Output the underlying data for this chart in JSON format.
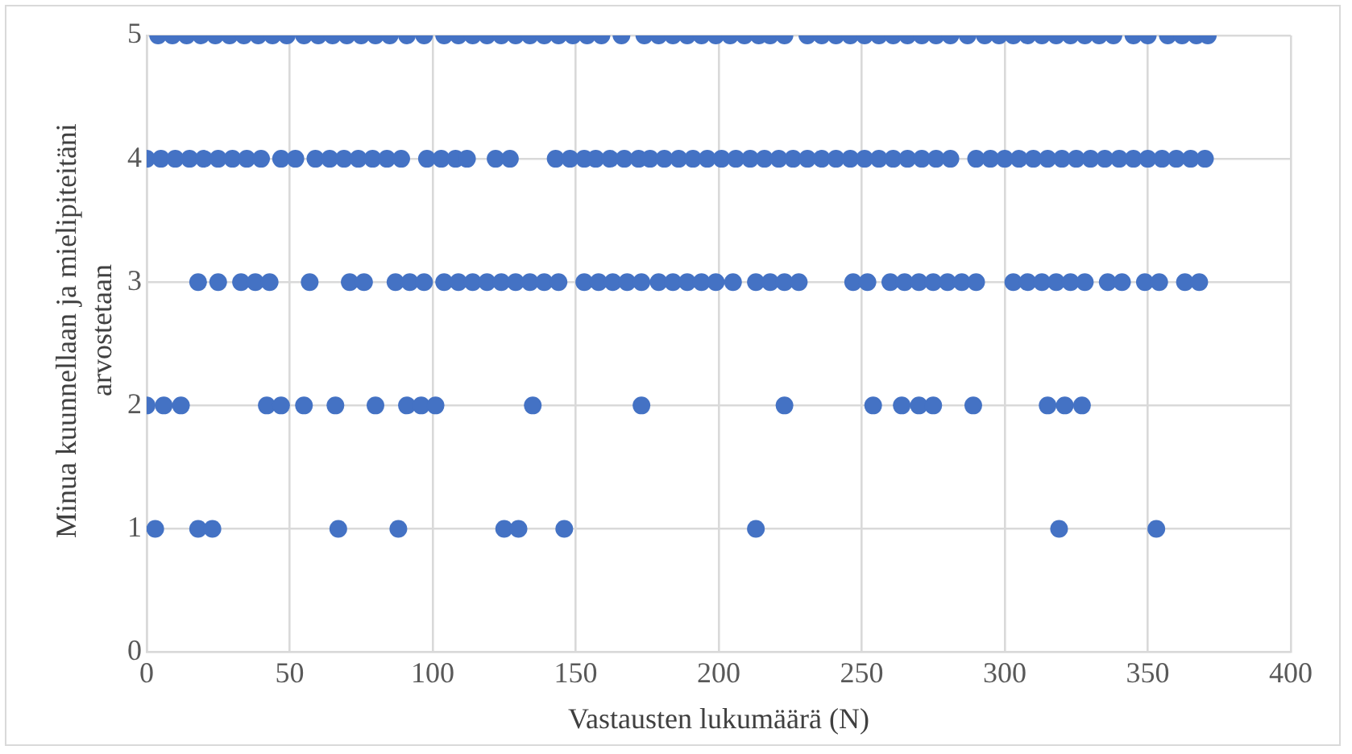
{
  "chart_data": {
    "type": "scatter",
    "xlabel": "Vastausten lukumäärä (N)",
    "ylabel": "Minua kuunnellaan ja mielipiteitäni arvostetaan",
    "xlim": [
      0,
      400
    ],
    "xticks": [
      0,
      50,
      100,
      150,
      200,
      250,
      300,
      350,
      400
    ],
    "ylim": [
      0,
      5
    ],
    "yticks": [
      0,
      1,
      2,
      3,
      4,
      5
    ],
    "grid": true,
    "legend": false,
    "marker": "circle",
    "series": [
      {
        "color": "#4472c4",
        "x": [
          4,
          9,
          14,
          19,
          24,
          29,
          34,
          39,
          44,
          49,
          55,
          60,
          65,
          70,
          75,
          80,
          85,
          91,
          97,
          104,
          109,
          114,
          119,
          124,
          129,
          134,
          139,
          144,
          149,
          154,
          159,
          166,
          174,
          179,
          184,
          189,
          194,
          199,
          204,
          209,
          214,
          218,
          223,
          231,
          236,
          241,
          246,
          251,
          256,
          261,
          266,
          271,
          276,
          281,
          287,
          293,
          298,
          303,
          308,
          313,
          318,
          323,
          328,
          333,
          338,
          345,
          350,
          357,
          362,
          367,
          371
        ],
        "values": [
          5,
          5,
          5,
          5,
          5,
          5,
          5,
          5,
          5,
          5,
          5,
          5,
          5,
          5,
          5,
          5,
          5,
          5,
          5,
          5,
          5,
          5,
          5,
          5,
          5,
          5,
          5,
          5,
          5,
          5,
          5,
          5,
          5,
          5,
          5,
          5,
          5,
          5,
          5,
          5,
          5,
          5,
          5,
          5,
          5,
          5,
          5,
          5,
          5,
          5,
          5,
          5,
          5,
          5,
          5,
          5,
          5,
          5,
          5,
          5,
          5,
          5,
          5,
          5,
          5,
          5,
          5,
          5,
          5,
          5,
          5
        ]
      },
      {
        "color": "#4472c4",
        "x": [
          0,
          5,
          10,
          15,
          20,
          25,
          30,
          35,
          40,
          47,
          52,
          59,
          64,
          69,
          74,
          79,
          84,
          89,
          98,
          103,
          108,
          112,
          122,
          127,
          143,
          148,
          153,
          157,
          162,
          167,
          172,
          176,
          181,
          186,
          191,
          196,
          201,
          206,
          211,
          216,
          221,
          226,
          231,
          236,
          241,
          246,
          251,
          256,
          261,
          266,
          271,
          276,
          281,
          290,
          295,
          300,
          305,
          310,
          315,
          320,
          325,
          330,
          335,
          340,
          345,
          350,
          355,
          360,
          365,
          370
        ],
        "values": [
          4,
          4,
          4,
          4,
          4,
          4,
          4,
          4,
          4,
          4,
          4,
          4,
          4,
          4,
          4,
          4,
          4,
          4,
          4,
          4,
          4,
          4,
          4,
          4,
          4,
          4,
          4,
          4,
          4,
          4,
          4,
          4,
          4,
          4,
          4,
          4,
          4,
          4,
          4,
          4,
          4,
          4,
          4,
          4,
          4,
          4,
          4,
          4,
          4,
          4,
          4,
          4,
          4,
          4,
          4,
          4,
          4,
          4,
          4,
          4,
          4,
          4,
          4,
          4,
          4,
          4,
          4,
          4,
          4,
          4
        ]
      },
      {
        "color": "#4472c4",
        "x": [
          18,
          25,
          33,
          38,
          43,
          57,
          71,
          76,
          87,
          92,
          97,
          104,
          109,
          114,
          119,
          124,
          129,
          134,
          139,
          144,
          153,
          158,
          163,
          168,
          173,
          179,
          184,
          189,
          194,
          199,
          205,
          213,
          218,
          223,
          228,
          247,
          252,
          260,
          265,
          270,
          275,
          280,
          285,
          290,
          303,
          308,
          313,
          318,
          323,
          328,
          336,
          341,
          349,
          354,
          363,
          368
        ],
        "values": [
          3,
          3,
          3,
          3,
          3,
          3,
          3,
          3,
          3,
          3,
          3,
          3,
          3,
          3,
          3,
          3,
          3,
          3,
          3,
          3,
          3,
          3,
          3,
          3,
          3,
          3,
          3,
          3,
          3,
          3,
          3,
          3,
          3,
          3,
          3,
          3,
          3,
          3,
          3,
          3,
          3,
          3,
          3,
          3,
          3,
          3,
          3,
          3,
          3,
          3,
          3,
          3,
          3,
          3,
          3,
          3
        ]
      },
      {
        "color": "#4472c4",
        "x": [
          0,
          6,
          12,
          42,
          47,
          55,
          66,
          80,
          91,
          96,
          101,
          135,
          173,
          223,
          254,
          264,
          270,
          275,
          289,
          315,
          321,
          327
        ],
        "values": [
          2,
          2,
          2,
          2,
          2,
          2,
          2,
          2,
          2,
          2,
          2,
          2,
          2,
          2,
          2,
          2,
          2,
          2,
          2,
          2,
          2,
          2
        ]
      },
      {
        "color": "#4472c4",
        "x": [
          3,
          18,
          23,
          67,
          88,
          125,
          130,
          146,
          213,
          319,
          353
        ],
        "values": [
          1,
          1,
          1,
          1,
          1,
          1,
          1,
          1,
          1,
          1,
          1
        ]
      }
    ]
  }
}
